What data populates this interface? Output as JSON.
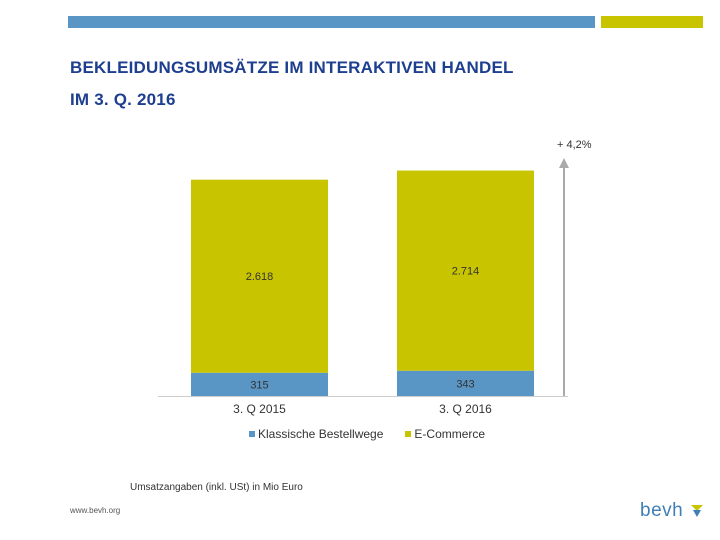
{
  "title_line1": "BEKLEIDUNGSUMSÄTZE IM INTERAKTIVEN HANDEL",
  "title_line2": "IM 3. Q. 2016",
  "footnote": "Umsatzangaben (inkl. USt) in Mio Euro",
  "website": "www.bevh.org",
  "logo_text": "bevh",
  "colors": {
    "accent_blue": "#5a96c5",
    "accent_olive": "#c8c400",
    "title": "#1e3f8f",
    "arrow": "#aaaaaa"
  },
  "chart_data": {
    "type": "bar",
    "stacked": true,
    "categories": [
      "3. Q 2015",
      "3. Q 2016"
    ],
    "series": [
      {
        "name": "Klassische Bestellwege",
        "values": [
          315,
          343
        ],
        "labels": [
          "315",
          "343"
        ],
        "color": "#5a96c5"
      },
      {
        "name": "E-Commerce",
        "values": [
          2618,
          2714
        ],
        "labels": [
          "2.618",
          "2.714"
        ],
        "color": "#c8c400"
      }
    ],
    "growth_annotation": "+ 4,2%",
    "legend_position": "bottom",
    "grid": false,
    "ylim": [
      0,
      3200
    ]
  }
}
